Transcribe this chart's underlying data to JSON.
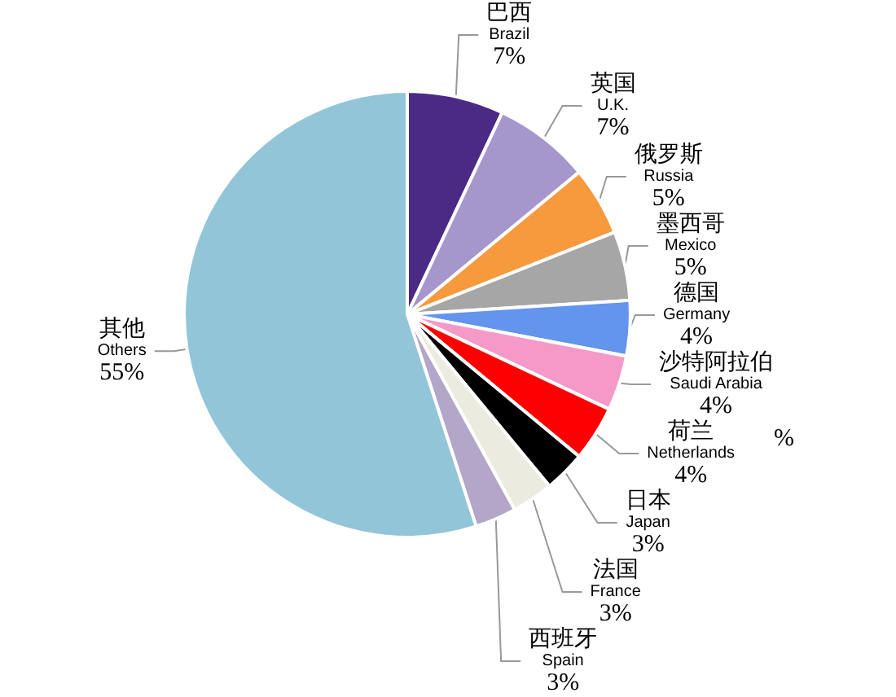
{
  "chart_data": {
    "type": "pie",
    "categories": [
      "巴西\nBrazil",
      "英国\nU.K.",
      "俄罗斯\nRussia",
      "墨西哥\nMexico",
      "德国\nGermany",
      "沙特阿拉伯\nSaudi Arabia",
      "荷兰\nNetherlands",
      "日本\nJapan",
      "法国\nFrance",
      "西班牙\nSpain",
      "其他\nOthers"
    ],
    "values": [
      7,
      7,
      5,
      5,
      4,
      4,
      4,
      3,
      3,
      3,
      55
    ],
    "colors": [
      "#4b2a86",
      "#a597cc",
      "#f79a3e",
      "#a6a6a6",
      "#6495ed",
      "#f59ac8",
      "#ff0000",
      "#000000",
      "#ecebe0",
      "#b3a6c9",
      "#92c5d8"
    ],
    "value_labels": [
      "7%",
      "7%",
      "5%",
      "5%",
      "4%",
      "4%",
      "4%",
      "3%",
      "3%",
      "3%",
      "55%"
    ],
    "annotations": [
      "%"
    ]
  }
}
